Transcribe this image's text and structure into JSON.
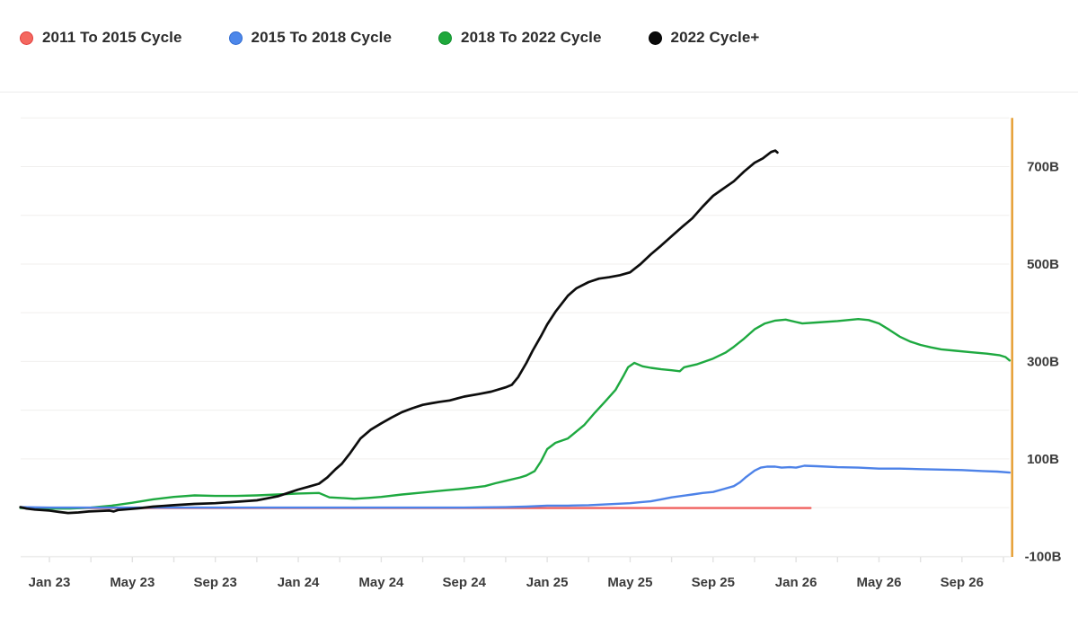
{
  "legend": {
    "items": [
      {
        "label": "2011 To 2015 Cycle",
        "color": "#F4685F",
        "border": "#E23D3C"
      },
      {
        "label": "2015 To 2018 Cycle",
        "color": "#4D87EA",
        "border": "#2F6AD1"
      },
      {
        "label": "2018 To 2022 Cycle",
        "color": "#1FA83C",
        "border": "#0F8F2C"
      },
      {
        "label": "2022 Cycle+",
        "color": "#0B0B0B",
        "border": "#000000"
      }
    ]
  },
  "chart_data": {
    "type": "line",
    "title": "",
    "xlabel": "",
    "ylabel": "",
    "x_unit": "months since Jan 2023",
    "y_unit": "billions (B)",
    "grid": "horizontal",
    "legend_position": "top-left",
    "x_axis": {
      "ticks": [
        {
          "label": "Jan 23",
          "t": 0
        },
        {
          "label": "May 23",
          "t": 4
        },
        {
          "label": "Sep 23",
          "t": 8
        },
        {
          "label": "Jan 24",
          "t": 12
        },
        {
          "label": "May 24",
          "t": 16
        },
        {
          "label": "Sep 24",
          "t": 20
        },
        {
          "label": "Jan 25",
          "t": 24
        },
        {
          "label": "May 25",
          "t": 28
        },
        {
          "label": "Sep 25",
          "t": 32
        },
        {
          "label": "Jan 26",
          "t": 36
        },
        {
          "label": "May 26",
          "t": 40
        },
        {
          "label": "Sep 26",
          "t": 44
        }
      ],
      "range_t": [
        -1.4,
        46.4
      ]
    },
    "y_axis": {
      "labeled_ticks": [
        {
          "label": "700B",
          "value": 700
        },
        {
          "label": "500B",
          "value": 500
        },
        {
          "label": "300B",
          "value": 300
        },
        {
          "label": "100B",
          "value": 100
        },
        {
          "label": "-100B",
          "value": -100
        }
      ],
      "gridline_values": [
        800,
        700,
        600,
        500,
        400,
        300,
        200,
        100,
        0,
        -100
      ],
      "range": [
        -100,
        800
      ],
      "side": "right"
    },
    "marker_line": {
      "name": "current-date-marker",
      "t": 46.42,
      "color": "#E7A33D"
    },
    "series": [
      {
        "name": "2011 To 2015 Cycle",
        "color": "#F0615E",
        "width": 2.4,
        "points": [
          [
            -1.4,
            0
          ],
          [
            0,
            -1
          ],
          [
            6,
            -1
          ],
          [
            12,
            -1
          ],
          [
            18,
            -1
          ],
          [
            24,
            -1
          ],
          [
            28,
            -1
          ],
          [
            32,
            -1
          ],
          [
            34,
            -1
          ],
          [
            36,
            -1
          ],
          [
            36.7,
            -1
          ]
        ]
      },
      {
        "name": "2018 To 2022 Cycle",
        "color": "#1EA940",
        "width": 2.4,
        "points": [
          [
            -1.4,
            -1
          ],
          [
            0,
            -2
          ],
          [
            1,
            -2
          ],
          [
            2,
            0
          ],
          [
            3,
            4
          ],
          [
            4,
            10
          ],
          [
            5,
            17
          ],
          [
            6,
            22
          ],
          [
            7,
            25
          ],
          [
            8,
            24
          ],
          [
            9,
            24
          ],
          [
            10,
            25
          ],
          [
            11,
            27
          ],
          [
            12,
            29
          ],
          [
            13,
            30
          ],
          [
            13.5,
            21
          ],
          [
            14,
            20
          ],
          [
            14.7,
            18
          ],
          [
            15.4,
            20
          ],
          [
            16,
            22
          ],
          [
            17,
            27
          ],
          [
            18,
            31
          ],
          [
            19,
            35
          ],
          [
            20,
            39
          ],
          [
            21,
            44
          ],
          [
            21.5,
            50
          ],
          [
            22,
            55
          ],
          [
            22.7,
            62
          ],
          [
            23,
            66
          ],
          [
            23.4,
            75
          ],
          [
            23.7,
            95
          ],
          [
            24,
            120
          ],
          [
            24.4,
            133
          ],
          [
            25,
            142
          ],
          [
            25.8,
            170
          ],
          [
            26.3,
            195
          ],
          [
            26.8,
            218
          ],
          [
            27.3,
            242
          ],
          [
            27.7,
            272
          ],
          [
            27.9,
            288
          ],
          [
            28.2,
            297
          ],
          [
            28.6,
            290
          ],
          [
            29,
            287
          ],
          [
            29.5,
            284
          ],
          [
            30,
            282
          ],
          [
            30.4,
            280
          ],
          [
            30.6,
            288
          ],
          [
            31.2,
            294
          ],
          [
            32,
            306
          ],
          [
            32.6,
            318
          ],
          [
            33,
            330
          ],
          [
            33.5,
            347
          ],
          [
            34,
            366
          ],
          [
            34.5,
            378
          ],
          [
            35,
            384
          ],
          [
            35.5,
            386
          ],
          [
            36,
            381
          ],
          [
            36.3,
            378
          ],
          [
            37,
            380
          ],
          [
            38,
            383
          ],
          [
            39,
            387
          ],
          [
            39.5,
            385
          ],
          [
            40,
            378
          ],
          [
            40.5,
            365
          ],
          [
            41,
            351
          ],
          [
            41.5,
            341
          ],
          [
            42,
            334
          ],
          [
            42.5,
            329
          ],
          [
            43,
            325
          ],
          [
            43.7,
            322
          ],
          [
            44.4,
            319
          ],
          [
            45.2,
            316
          ],
          [
            45.8,
            313
          ],
          [
            46.1,
            309
          ],
          [
            46.3,
            302
          ]
        ]
      },
      {
        "name": "2015 To 2018 Cycle",
        "color": "#4D82E8",
        "width": 2.4,
        "points": [
          [
            -1.4,
            1
          ],
          [
            0,
            0
          ],
          [
            4,
            0
          ],
          [
            8,
            0
          ],
          [
            12,
            0
          ],
          [
            16,
            0
          ],
          [
            20,
            0
          ],
          [
            22,
            1
          ],
          [
            23,
            2
          ],
          [
            24,
            4
          ],
          [
            25,
            4
          ],
          [
            26,
            5
          ],
          [
            27,
            7
          ],
          [
            28,
            9
          ],
          [
            28.5,
            11
          ],
          [
            29,
            13
          ],
          [
            29.5,
            17
          ],
          [
            30,
            21
          ],
          [
            30.5,
            24
          ],
          [
            31,
            27
          ],
          [
            31.5,
            30
          ],
          [
            32,
            32
          ],
          [
            32.5,
            38
          ],
          [
            33,
            44
          ],
          [
            33.3,
            52
          ],
          [
            33.6,
            63
          ],
          [
            34,
            76
          ],
          [
            34.3,
            82
          ],
          [
            34.6,
            84
          ],
          [
            35,
            84
          ],
          [
            35.3,
            82
          ],
          [
            35.7,
            83
          ],
          [
            36,
            82
          ],
          [
            36.4,
            86
          ],
          [
            37,
            85
          ],
          [
            38,
            83
          ],
          [
            39,
            82
          ],
          [
            40,
            80
          ],
          [
            41,
            80
          ],
          [
            42,
            79
          ],
          [
            43,
            78
          ],
          [
            44,
            77
          ],
          [
            45,
            75
          ],
          [
            45.7,
            74
          ],
          [
            46.3,
            72
          ]
        ]
      },
      {
        "name": "2022 Cycle+",
        "color": "#0D0D0D",
        "width": 2.7,
        "points": [
          [
            -1.4,
            1
          ],
          [
            -1.1,
            -2
          ],
          [
            -0.7,
            -4
          ],
          [
            0,
            -6
          ],
          [
            0.5,
            -9
          ],
          [
            0.9,
            -11
          ],
          [
            1.4,
            -10
          ],
          [
            1.9,
            -8
          ],
          [
            2.4,
            -7
          ],
          [
            2.9,
            -6
          ],
          [
            3.1,
            -8
          ],
          [
            3.3,
            -5
          ],
          [
            3.9,
            -3
          ],
          [
            4.4,
            -1
          ],
          [
            5,
            2
          ],
          [
            5.5,
            3.5
          ],
          [
            6,
            5
          ],
          [
            7,
            7.5
          ],
          [
            8,
            9
          ],
          [
            9,
            12
          ],
          [
            10,
            15
          ],
          [
            10.5,
            19
          ],
          [
            11,
            23
          ],
          [
            11.5,
            30
          ],
          [
            12,
            37
          ],
          [
            12.5,
            43
          ],
          [
            13,
            49
          ],
          [
            13.4,
            62
          ],
          [
            13.8,
            79
          ],
          [
            14.1,
            90
          ],
          [
            14.5,
            112
          ],
          [
            15,
            142
          ],
          [
            15.5,
            160
          ],
          [
            16,
            173
          ],
          [
            16.5,
            185
          ],
          [
            17,
            196
          ],
          [
            17.5,
            204
          ],
          [
            18,
            211
          ],
          [
            18.4,
            214
          ],
          [
            18.8,
            217
          ],
          [
            19.3,
            220
          ],
          [
            20,
            228
          ],
          [
            20.7,
            233
          ],
          [
            21.3,
            238
          ],
          [
            22,
            247
          ],
          [
            22.3,
            252
          ],
          [
            22.6,
            268
          ],
          [
            23,
            297
          ],
          [
            23.3,
            322
          ],
          [
            23.7,
            352
          ],
          [
            24,
            376
          ],
          [
            24.4,
            402
          ],
          [
            25,
            435
          ],
          [
            25.4,
            450
          ],
          [
            26,
            463
          ],
          [
            26.5,
            470
          ],
          [
            27,
            473
          ],
          [
            27.5,
            477
          ],
          [
            28,
            483
          ],
          [
            28.2,
            490
          ],
          [
            28.5,
            500
          ],
          [
            29,
            520
          ],
          [
            29.5,
            538
          ],
          [
            30,
            557
          ],
          [
            30.5,
            576
          ],
          [
            31,
            594
          ],
          [
            31.5,
            618
          ],
          [
            32,
            640
          ],
          [
            32.4,
            652
          ],
          [
            33,
            670
          ],
          [
            33.5,
            690
          ],
          [
            34,
            708
          ],
          [
            34.4,
            717
          ],
          [
            34.8,
            730
          ],
          [
            35,
            733
          ],
          [
            35.1,
            729
          ]
        ]
      }
    ]
  },
  "style": {
    "gridline_color": "#f0efee",
    "axis_line_color": "#ececec",
    "tick_color": "#e2e2e2",
    "axis_text_color": "#3b3b3b"
  }
}
